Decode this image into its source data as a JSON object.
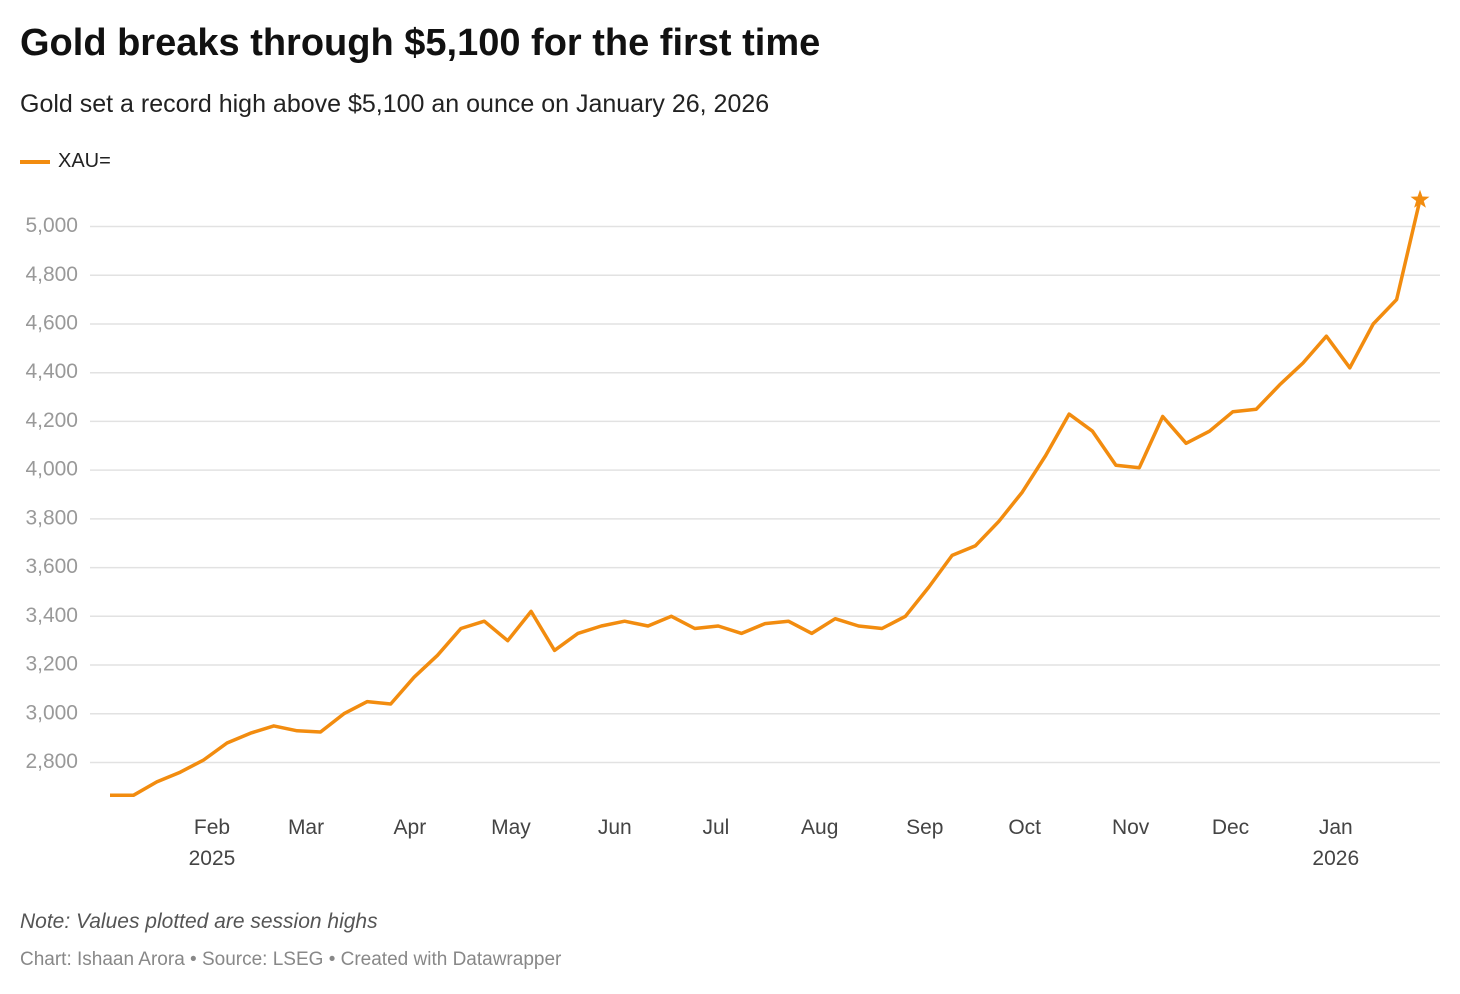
{
  "chart_data": {
    "type": "line",
    "title": "Gold breaks through $5,100 for the first time",
    "subtitle": "Gold set a record high above $5,100 an ounce on January 26, 2026",
    "note": "Note: Values plotted are session highs",
    "source": "Chart: Ishaan Arora • Source: LSEG • Created with Datawrapper",
    "series": [
      {
        "name": "XAU=",
        "color": "#f28c0f",
        "values": [
          2665,
          2665,
          2720,
          2760,
          2810,
          2880,
          2920,
          2950,
          2930,
          2925,
          3000,
          3050,
          3040,
          3150,
          3240,
          3350,
          3380,
          3300,
          3420,
          3260,
          3330,
          3360,
          3380,
          3360,
          3400,
          3350,
          3360,
          3330,
          3370,
          3380,
          3330,
          3390,
          3360,
          3350,
          3400,
          3520,
          3650,
          3690,
          3790,
          3910,
          4060,
          4230,
          4160,
          4020,
          4010,
          4220,
          4110,
          4160,
          4240,
          4250,
          4350,
          4440,
          4550,
          4420,
          4600,
          4700,
          5110
        ]
      }
    ],
    "xlim": [
      0,
      56
    ],
    "xticks": [
      {
        "value": 4.36,
        "label": "Feb\n2025"
      },
      {
        "value": 8.38,
        "label": "Mar"
      },
      {
        "value": 12.82,
        "label": "Apr"
      },
      {
        "value": 17.14,
        "label": "May"
      },
      {
        "value": 21.58,
        "label": "Jun"
      },
      {
        "value": 25.9,
        "label": "Jul"
      },
      {
        "value": 30.34,
        "label": "Aug"
      },
      {
        "value": 34.83,
        "label": "Sep"
      },
      {
        "value": 39.1,
        "label": "Oct"
      },
      {
        "value": 43.63,
        "label": "Nov"
      },
      {
        "value": 47.9,
        "label": "Dec"
      },
      {
        "value": 52.4,
        "label": "Jan\n2026"
      }
    ],
    "ylim": [
      2650,
      5150
    ],
    "yticks": [
      {
        "value": 2800,
        "label": "2,800"
      },
      {
        "value": 3000,
        "label": "3,000"
      },
      {
        "value": 3200,
        "label": "3,200"
      },
      {
        "value": 3400,
        "label": "3,400"
      },
      {
        "value": 3600,
        "label": "3,600"
      },
      {
        "value": 3800,
        "label": "3,800"
      },
      {
        "value": 4000,
        "label": "4,000"
      },
      {
        "value": 4200,
        "label": "4,200"
      },
      {
        "value": 4400,
        "label": "4,400"
      },
      {
        "value": 4600,
        "label": "4,600"
      },
      {
        "value": 4800,
        "label": "4,800"
      },
      {
        "value": 5000,
        "label": "5,000"
      }
    ],
    "grid": true,
    "end_marker": "star"
  }
}
